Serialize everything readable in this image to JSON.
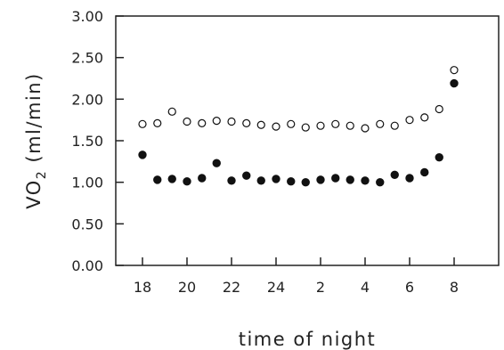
{
  "chart_data": {
    "type": "scatter",
    "xlabel": "time of night",
    "ylabel": "VO2 (ml/min)",
    "ylabel_parts": {
      "base": "VO",
      "sub": "2",
      "rest": " (ml/min)"
    },
    "ylim": [
      0,
      3
    ],
    "y_ticks": [
      "0.00",
      "0.50",
      "1.00",
      "1.50",
      "2.00",
      "2.50",
      "3.00"
    ],
    "x_tick_labels": [
      "18",
      "20",
      "22",
      "24",
      "2",
      "4",
      "6",
      "8"
    ],
    "x_tick_hours": [
      18,
      20,
      22,
      24,
      26,
      28,
      30,
      32
    ],
    "xlim_hours": [
      16.8,
      34
    ],
    "grid": false,
    "x": [
      18,
      18.67,
      19.33,
      20,
      20.67,
      21.33,
      22,
      22.67,
      23.33,
      24,
      24.67,
      25.33,
      26,
      26.67,
      27.33,
      28,
      28.67,
      29.33,
      30,
      30.67,
      31.33,
      32
    ],
    "series": [
      {
        "marker": "open-circle",
        "values": [
          1.7,
          1.71,
          1.85,
          1.73,
          1.71,
          1.74,
          1.73,
          1.71,
          1.69,
          1.67,
          1.7,
          1.66,
          1.68,
          1.7,
          1.68,
          1.65,
          1.7,
          1.68,
          1.75,
          1.78,
          1.88,
          2.35
        ]
      },
      {
        "marker": "filled-circle",
        "values": [
          1.33,
          1.03,
          1.04,
          1.01,
          1.05,
          1.23,
          1.02,
          1.08,
          1.02,
          1.04,
          1.01,
          1.0,
          1.03,
          1.05,
          1.03,
          1.02,
          1.0,
          1.09,
          1.05,
          1.12,
          1.3,
          2.19
        ]
      }
    ]
  }
}
